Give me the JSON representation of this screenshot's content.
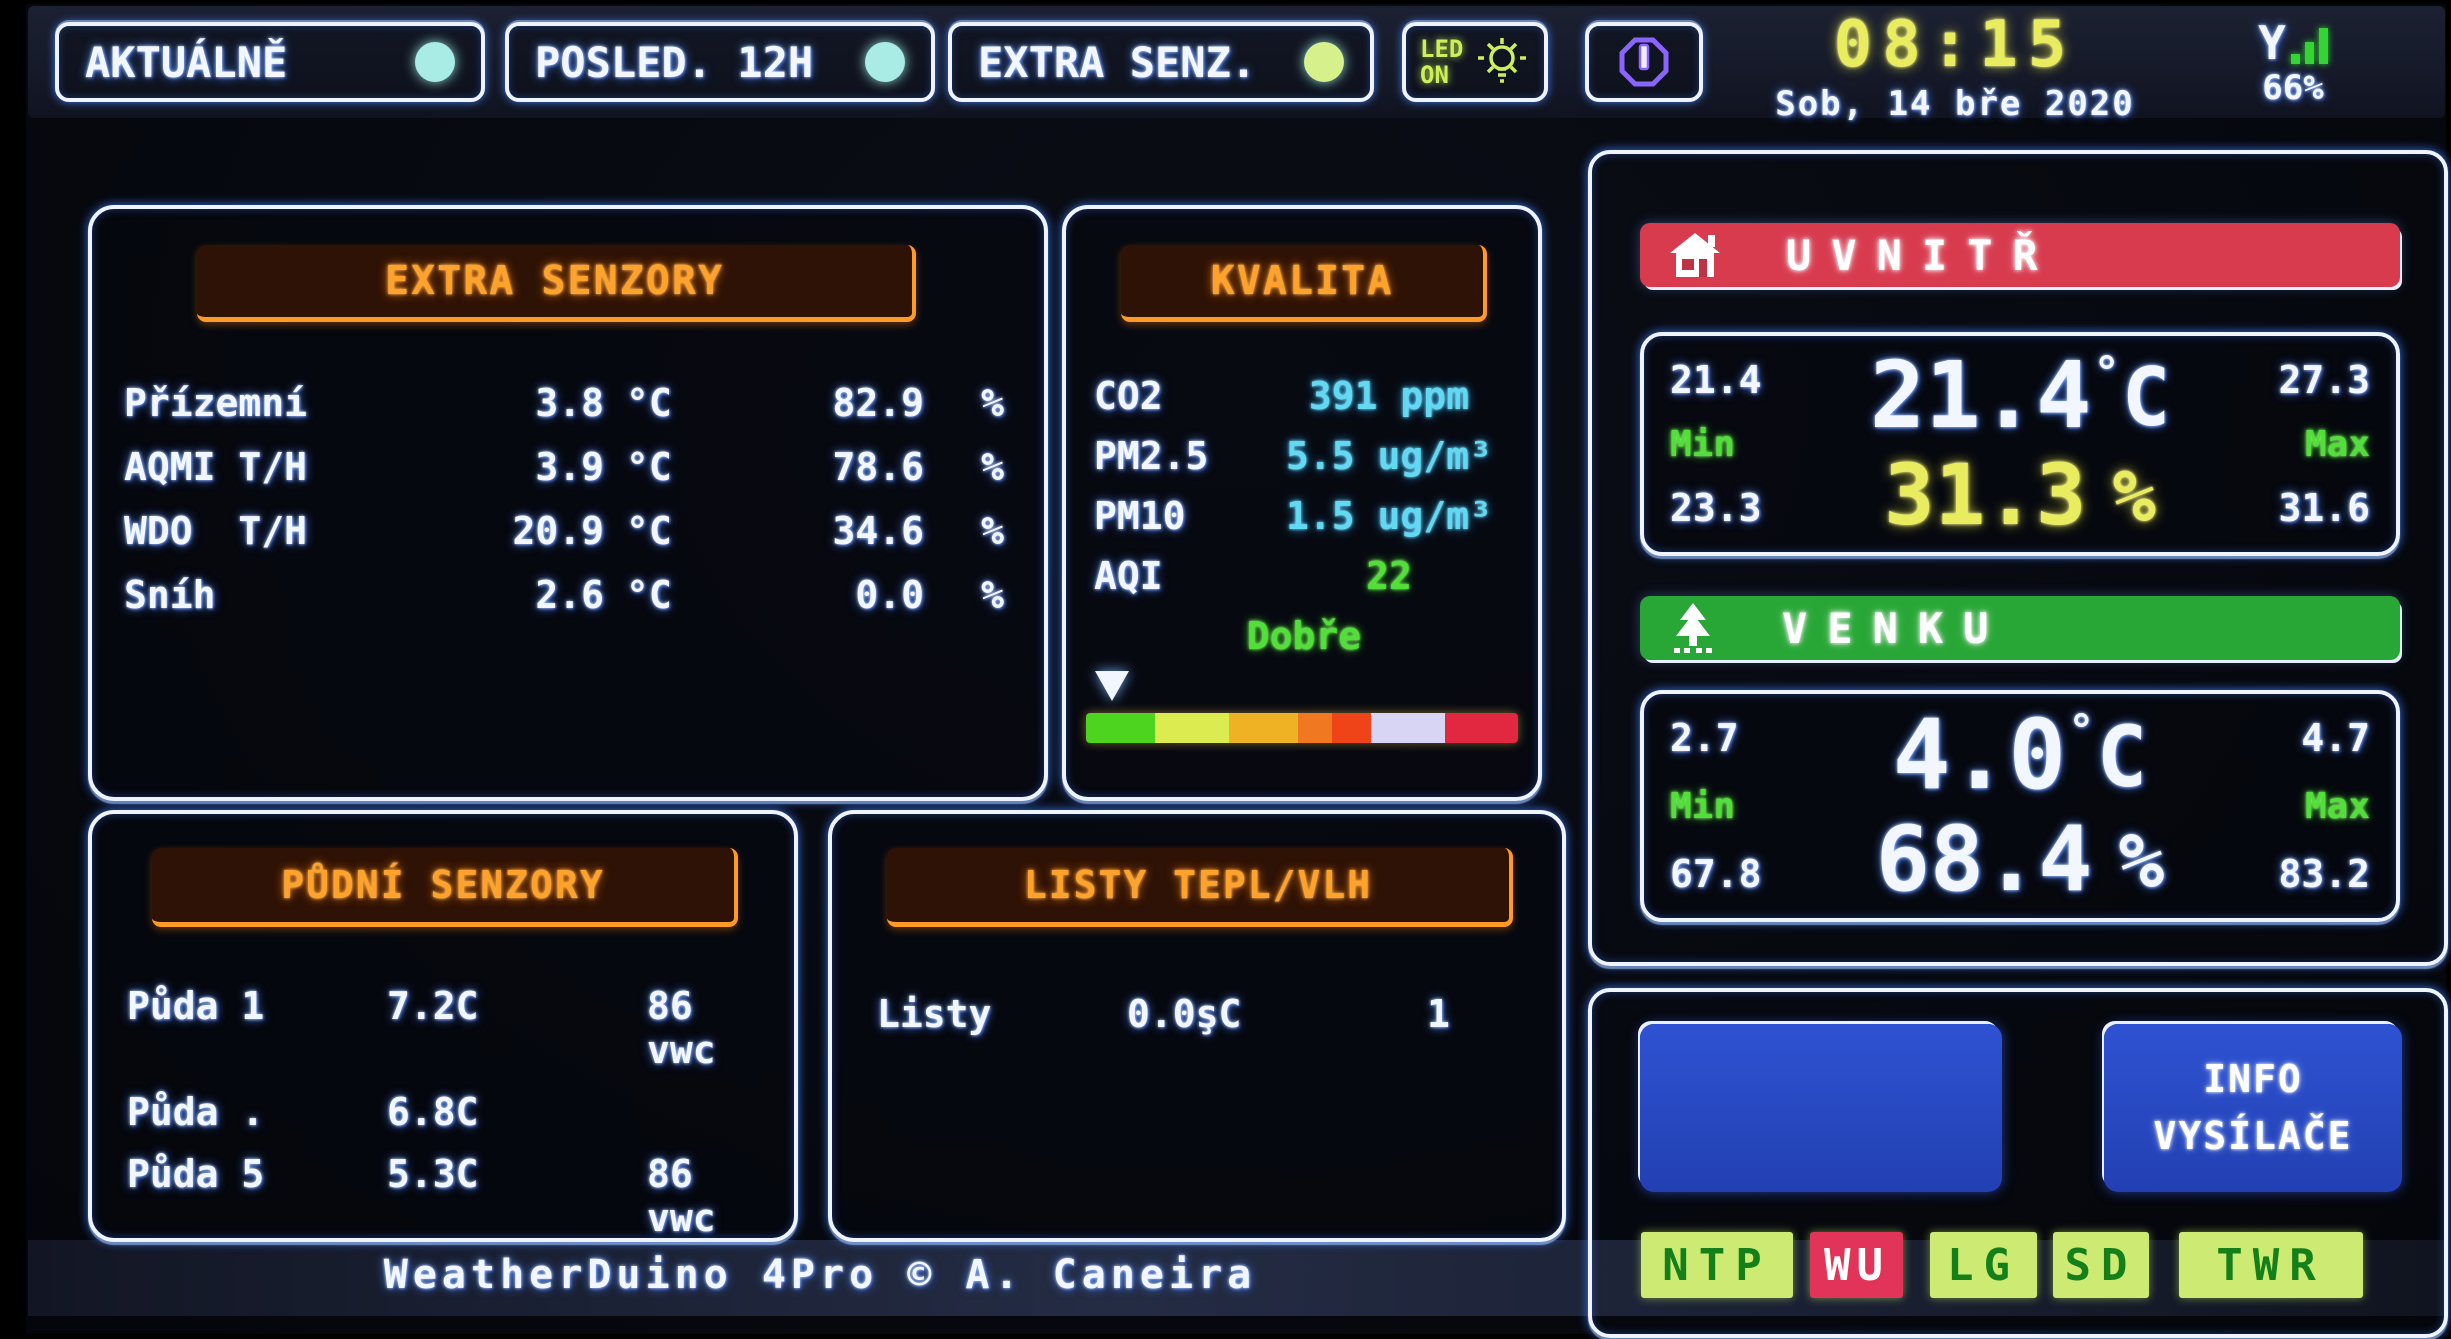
{
  "top_bar": {
    "tabs": [
      {
        "label": "AKTUÁLNĚ",
        "dot_color": "#a9ece6"
      },
      {
        "label": "POSLED. 12H",
        "dot_color": "#a9ece6"
      },
      {
        "label": "EXTRA SENZ.",
        "dot_color": "#d6f08c"
      }
    ],
    "led_button": {
      "line1": "LED",
      "line2": "ON"
    },
    "clock": {
      "time": "08:15",
      "date": "Sob, 14 bře 2020"
    },
    "signal": {
      "percent": "66%"
    }
  },
  "units": {
    "deg": "°",
    "celsius": "C",
    "percent": "%",
    "temp_unit": "°C",
    "hum_unit": "%"
  },
  "panels": {
    "extra_senzory": {
      "title": "EXTRA SENZORY",
      "rows": [
        {
          "label": "Přízemní",
          "temp": "3.8",
          "hum": "82.9"
        },
        {
          "label": "AQMI T/H",
          "temp": "3.9",
          "hum": "78.6"
        },
        {
          "label": "WDO  T/H",
          "temp": "20.9",
          "hum": "34.6"
        },
        {
          "label": "Sníh",
          "temp": "2.6",
          "hum": "0.0"
        }
      ]
    },
    "kvalita": {
      "title": "KVALITA",
      "rows": [
        {
          "label": "CO2",
          "value": "391 ppm",
          "value_color": "#62d8f2"
        },
        {
          "label": "PM2.5",
          "value": "5.5 ug/m³",
          "value_color": "#62d8f2"
        },
        {
          "label": "PM10",
          "value": "1.5 ug/m³",
          "value_color": "#62d8f2"
        },
        {
          "label": "AQI",
          "value": "22",
          "value_color": "#52df3a"
        }
      ],
      "status": "Dobře",
      "pointer_left": "2%",
      "scale_segments": [
        {
          "color": "#4cd41e",
          "w": 16
        },
        {
          "color": "#dcec50",
          "w": 17
        },
        {
          "color": "#eeb224",
          "w": 16
        },
        {
          "color": "#f07820",
          "w": 8
        },
        {
          "color": "#ee4418",
          "w": 9
        },
        {
          "color": "#d8d4f4",
          "w": 17
        },
        {
          "color": "#e22840",
          "w": 17
        }
      ]
    },
    "pudni": {
      "title": "PŮDNÍ SENZORY",
      "rows": [
        {
          "label": "Půda 1",
          "temp": "7.2C",
          "moist": "86 vwc"
        },
        {
          "label": "Půda .",
          "temp": "6.8C",
          "moist": ""
        },
        {
          "label": "Půda 5",
          "temp": "5.3C",
          "moist": "86 vwc"
        }
      ]
    },
    "listy": {
      "title": "LISTY TEPL/VLH",
      "rows": [
        {
          "label": "Listy",
          "temp": "0.0şC",
          "count": "1"
        }
      ]
    }
  },
  "right": {
    "indoor": {
      "banner": "UVNITŘ",
      "temp": "21.4",
      "temp_min": "21.4",
      "temp_max": "27.3",
      "hum": "31.3",
      "hum_min": "23.3",
      "hum_max": "31.6",
      "min_label": "Min",
      "max_label": "Max",
      "banner_color": "#d83a4e"
    },
    "outdoor": {
      "banner": "VENKU",
      "temp": "4.0",
      "temp_min": "2.7",
      "temp_max": "4.7",
      "hum": "68.4",
      "hum_min": "67.8",
      "hum_max": "83.2",
      "min_label": "Min",
      "max_label": "Max",
      "banner_color": "#28a736"
    },
    "info_button": {
      "line1": "INFO",
      "line2": "VYSÍLAČE"
    },
    "badges": [
      {
        "label": "NTP",
        "bg": "#cdeb72",
        "fg": "#15801a"
      },
      {
        "label": "WU",
        "bg": "#e23358",
        "fg": "#ffffff"
      },
      {
        "label": "LG",
        "bg": "#cdeb72",
        "fg": "#15801a"
      },
      {
        "label": "SD",
        "bg": "#cdeb72",
        "fg": "#15801a"
      },
      {
        "label": "TWR",
        "bg": "#cdeb72",
        "fg": "#15801a"
      }
    ]
  },
  "footer": {
    "credit": "WeatherDuino 4Pro © A. Caneira"
  },
  "colors": {
    "header_orange": "#ffa22c",
    "value_cyan": "#62d8f2",
    "good_green": "#52df3a",
    "hum_yellow": "#e9ec5f",
    "time_yellow": "#e9ec5f",
    "signal_green": "#35d435",
    "button_blue": "#2847c4",
    "border_white": "#eef4ff"
  }
}
